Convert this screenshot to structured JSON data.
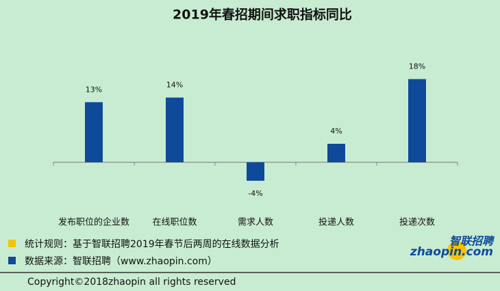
{
  "chart_data": {
    "type": "bar",
    "title": "2019年春招期间求职指标同比",
    "categories": [
      "发布职位的企业数",
      "在线职位数",
      "需求人数",
      "投递人数",
      "投递次数"
    ],
    "values": [
      13,
      14,
      -4,
      4,
      18
    ],
    "value_labels": [
      "13%",
      "14%",
      "-4%",
      "4%",
      "18%"
    ],
    "color": "#0f4a9a"
  },
  "footer": {
    "notes": [
      "统计规则：基于智联招聘2019年春节后两周的在线数据分析",
      "数据来源：智联招聘（www.zhaopin.com）"
    ],
    "copyright": "Copyright©2018zhaopin all rights reserved"
  },
  "logo": {
    "name": "智联招聘",
    "site": "zhaopin.com"
  }
}
